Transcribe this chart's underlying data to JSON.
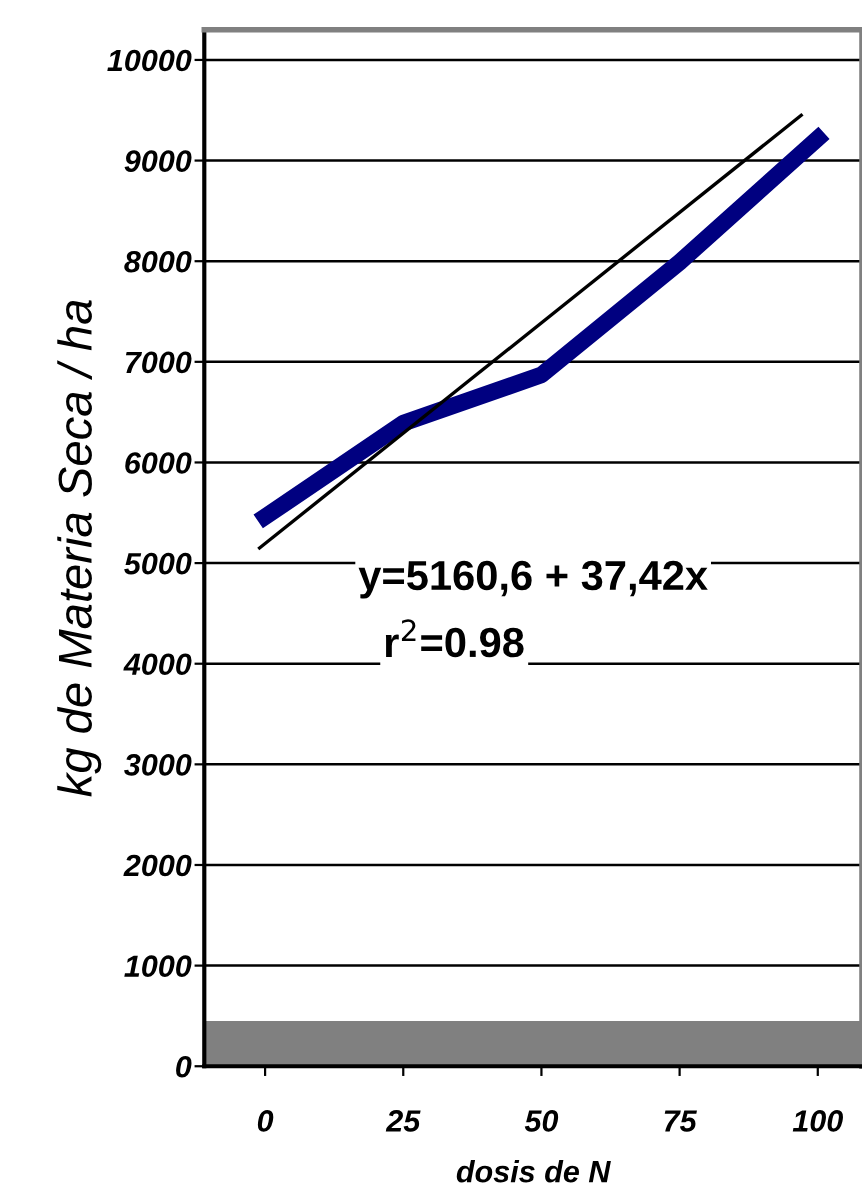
{
  "chart_data": {
    "type": "line",
    "xlabel": "dosis de N",
    "ylabel": "kg de Materia Seca / ha",
    "x": [
      0,
      25,
      50,
      75,
      100
    ],
    "series": [
      {
        "color": "#000080",
        "values": [
          5460,
          6390,
          6870,
          7990,
          9220
        ]
      },
      {
        "type": "line",
        "color": "#000000",
        "x": [
          -1,
          97
        ],
        "values": [
          5150,
          9450
        ]
      }
    ],
    "xlim": [
      -11,
      108
    ],
    "xticks": [
      0,
      25,
      50,
      75,
      100
    ],
    "ylim": [
      0,
      10300
    ],
    "yticks": [
      0,
      1000,
      2000,
      3000,
      4000,
      5000,
      6000,
      7000,
      8000,
      9000,
      10000
    ],
    "grid": "y",
    "marker": "none",
    "line_style": "solid",
    "bands": [
      {
        "axis": "y",
        "from": 0,
        "to": 450,
        "color": "#808080"
      }
    ],
    "annotations": [
      "y=5160,6 + 37,42x",
      "r$^{2}$=0.98"
    ]
  }
}
